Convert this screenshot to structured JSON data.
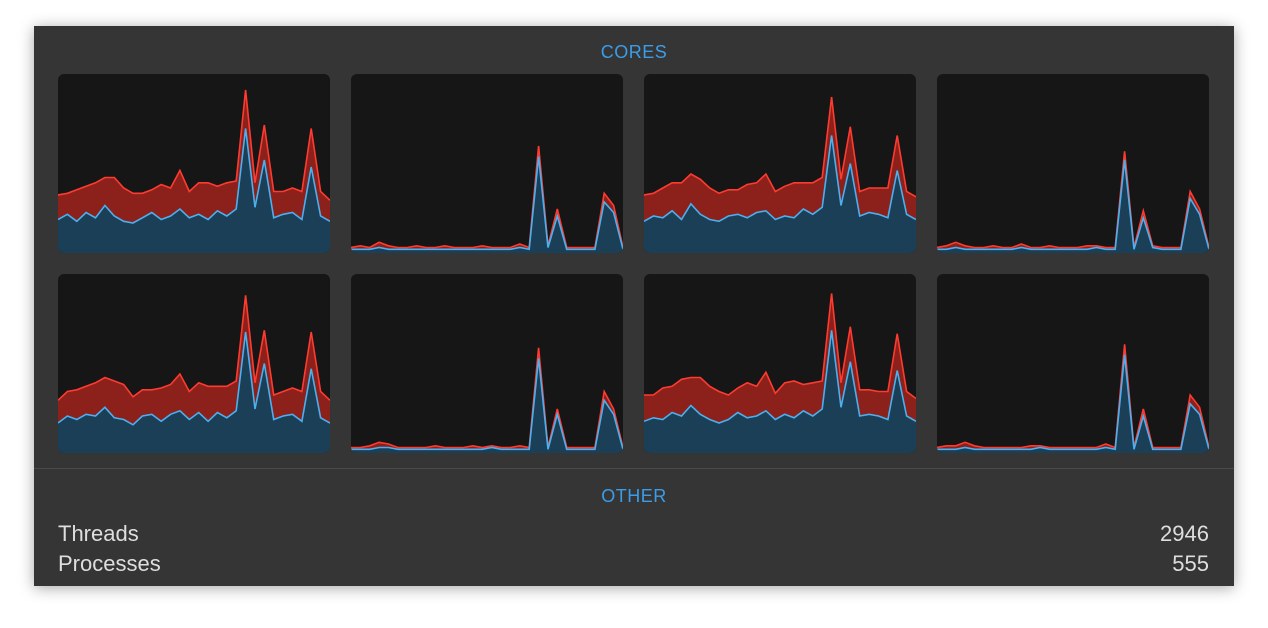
{
  "cores": {
    "title": "CORES",
    "charts": [
      {
        "type": "area",
        "stacked": true,
        "ylim": [
          0,
          100
        ],
        "series": [
          {
            "color": "#4ab0f0",
            "values": [
              18,
              21,
              17,
              22,
              19,
              26,
              20,
              17,
              16,
              19,
              22,
              18,
              20,
              24,
              19,
              21,
              18,
              23,
              20,
              24,
              70,
              25,
              52,
              19,
              21,
              22,
              18,
              48,
              20,
              17
            ]
          },
          {
            "color": "#ff3b30",
            "values": [
              14,
              12,
              18,
              15,
              20,
              16,
              22,
              19,
              17,
              14,
              13,
              20,
              16,
              22,
              15,
              18,
              21,
              14,
              19,
              16,
              22,
              14,
              20,
              15,
              13,
              14,
              16,
              22,
              14,
              12
            ]
          }
        ]
      },
      {
        "type": "area",
        "stacked": true,
        "ylim": [
          0,
          100
        ],
        "series": [
          {
            "color": "#4ab0f0",
            "values": [
              1,
              1,
              1,
              2,
              1,
              1,
              1,
              1,
              1,
              1,
              1,
              1,
              1,
              1,
              1,
              1,
              1,
              1,
              2,
              1,
              54,
              2,
              20,
              1,
              1,
              1,
              1,
              28,
              22,
              1
            ]
          },
          {
            "color": "#ff3b30",
            "values": [
              1,
              2,
              1,
              3,
              2,
              1,
              1,
              2,
              1,
              1,
              2,
              1,
              1,
              1,
              2,
              1,
              1,
              1,
              2,
              1,
              6,
              1,
              4,
              1,
              1,
              1,
              1,
              5,
              4,
              1
            ]
          }
        ]
      },
      {
        "type": "area",
        "stacked": true,
        "ylim": [
          0,
          100
        ],
        "series": [
          {
            "color": "#4ab0f0",
            "values": [
              17,
              20,
              19,
              23,
              18,
              27,
              21,
              18,
              17,
              20,
              21,
              19,
              22,
              23,
              18,
              20,
              19,
              24,
              21,
              25,
              66,
              26,
              50,
              20,
              22,
              21,
              19,
              46,
              21,
              18
            ]
          },
          {
            "color": "#ff3b30",
            "values": [
              15,
              13,
              17,
              16,
              21,
              17,
              20,
              18,
              16,
              15,
              14,
              19,
              17,
              21,
              16,
              17,
              20,
              15,
              18,
              17,
              22,
              15,
              21,
              14,
              14,
              15,
              17,
              20,
              13,
              13
            ]
          }
        ]
      },
      {
        "type": "area",
        "stacked": true,
        "ylim": [
          0,
          100
        ],
        "series": [
          {
            "color": "#4ab0f0",
            "values": [
              1,
              1,
              2,
              1,
              1,
              1,
              1,
              1,
              1,
              2,
              1,
              1,
              1,
              1,
              1,
              1,
              1,
              2,
              1,
              1,
              52,
              1,
              19,
              2,
              1,
              1,
              1,
              30,
              21,
              1
            ]
          },
          {
            "color": "#ff3b30",
            "values": [
              1,
              2,
              3,
              2,
              1,
              1,
              2,
              1,
              1,
              2,
              1,
              1,
              2,
              1,
              1,
              1,
              2,
              1,
              1,
              1,
              5,
              1,
              4,
              1,
              1,
              1,
              1,
              4,
              3,
              1
            ]
          }
        ]
      },
      {
        "type": "area",
        "stacked": true,
        "ylim": [
          0,
          100
        ],
        "series": [
          {
            "color": "#4ab0f0",
            "values": [
              16,
              20,
              18,
              21,
              20,
              25,
              19,
              18,
              15,
              20,
              21,
              17,
              21,
              23,
              18,
              22,
              17,
              22,
              19,
              23,
              68,
              24,
              50,
              18,
              20,
              21,
              17,
              47,
              19,
              16
            ]
          },
          {
            "color": "#ff3b30",
            "values": [
              13,
              14,
              17,
              16,
              19,
              17,
              21,
              20,
              16,
              15,
              14,
              19,
              17,
              21,
              16,
              17,
              20,
              15,
              18,
              17,
              21,
              15,
              19,
              14,
              14,
              15,
              17,
              21,
              15,
              13
            ]
          }
        ]
      },
      {
        "type": "area",
        "stacked": true,
        "ylim": [
          0,
          100
        ],
        "series": [
          {
            "color": "#4ab0f0",
            "values": [
              1,
              1,
              1,
              2,
              2,
              1,
              1,
              1,
              1,
              1,
              1,
              1,
              1,
              1,
              1,
              2,
              1,
              1,
              1,
              1,
              53,
              1,
              21,
              1,
              1,
              1,
              1,
              29,
              21,
              1
            ]
          },
          {
            "color": "#ff3b30",
            "values": [
              1,
              1,
              2,
              3,
              2,
              1,
              1,
              1,
              1,
              2,
              1,
              1,
              1,
              2,
              1,
              1,
              1,
              1,
              2,
              1,
              6,
              1,
              3,
              1,
              1,
              1,
              1,
              5,
              3,
              1
            ]
          }
        ]
      },
      {
        "type": "area",
        "stacked": true,
        "ylim": [
          0,
          100
        ],
        "series": [
          {
            "color": "#4ab0f0",
            "values": [
              17,
              19,
              18,
              22,
              20,
              26,
              21,
              18,
              16,
              18,
              22,
              19,
              20,
              23,
              18,
              21,
              19,
              23,
              20,
              24,
              69,
              25,
              51,
              20,
              21,
              20,
              18,
              46,
              20,
              17
            ]
          },
          {
            "color": "#ff3b30",
            "values": [
              15,
              13,
              18,
              15,
              21,
              16,
              21,
              19,
              18,
              14,
              14,
              20,
              17,
              22,
              15,
              18,
              21,
              15,
              19,
              16,
              21,
              14,
              20,
              15,
              14,
              14,
              16,
              21,
              14,
              13
            ]
          }
        ]
      },
      {
        "type": "area",
        "stacked": true,
        "ylim": [
          0,
          100
        ],
        "series": [
          {
            "color": "#4ab0f0",
            "values": [
              1,
              1,
              1,
              2,
              1,
              1,
              1,
              1,
              1,
              1,
              1,
              2,
              1,
              1,
              1,
              1,
              1,
              1,
              2,
              1,
              55,
              1,
              20,
              1,
              1,
              1,
              1,
              27,
              21,
              1
            ]
          },
          {
            "color": "#ff3b30",
            "values": [
              1,
              2,
              2,
              3,
              2,
              1,
              1,
              1,
              1,
              1,
              2,
              1,
              1,
              1,
              1,
              1,
              1,
              1,
              2,
              1,
              6,
              1,
              4,
              1,
              1,
              1,
              1,
              5,
              4,
              1
            ]
          }
        ]
      }
    ]
  },
  "other": {
    "title": "OTHER",
    "rows": [
      {
        "label": "Threads",
        "value": 2946
      },
      {
        "label": "Processes",
        "value": 555
      }
    ]
  }
}
